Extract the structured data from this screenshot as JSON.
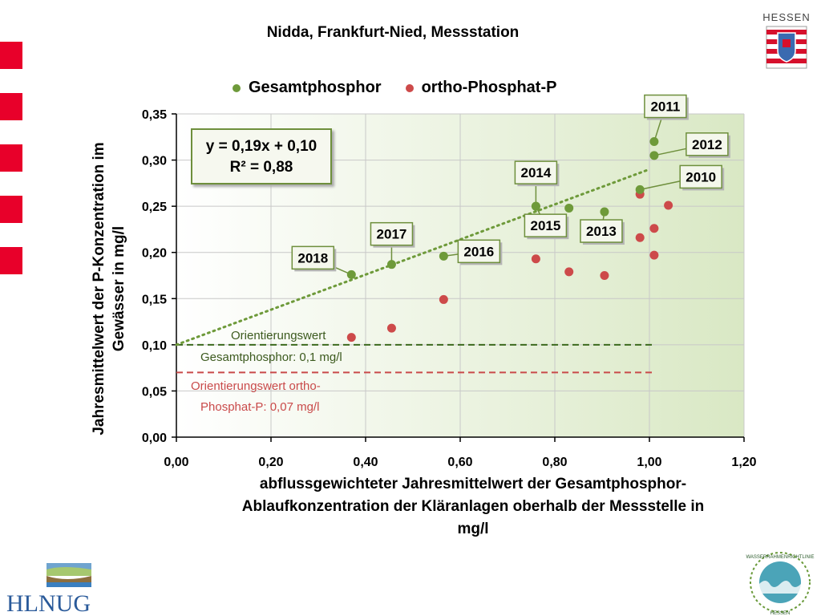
{
  "title": "Nidda, Frankfurt-Nied, Messstation",
  "header_logo": {
    "text": "HESSEN"
  },
  "footer_logos": {
    "left_text": "HLNUG",
    "right_text": "WASSERRAHMENRICHTLINIE",
    "right_bottom": "HESSEN"
  },
  "colors": {
    "gesamtphosphor": "#6e9a3a",
    "orthophosphat": "#cd4a4a",
    "side_blocks": "#e8002a",
    "plot_bg": "#dfeccd"
  },
  "equation": {
    "line1": "y = 0,19x + 0,10",
    "line2": "R² = 0,88"
  },
  "reference_lines": {
    "gesamtphosphor": {
      "value": 0.1,
      "label_line1": "Orientierungswert",
      "label_line2": "Gesamtphosphor: 0,1 mg/l"
    },
    "orthophosphat": {
      "value": 0.07,
      "label_line1": "Orientierungswert ortho-",
      "label_line2": "Phosphat-P: 0,07 mg/l"
    }
  },
  "chart_data": {
    "type": "scatter",
    "title": "Nidda, Frankfurt-Nied, Messstation",
    "xlabel_lines": [
      "abflussgewichteter Jahresmittelwert der Gesamtphosphor-",
      "Ablaufkonzentration der Kläranlagen oberhalb der Messstelle  in",
      "mg/l"
    ],
    "ylabel_lines": [
      "Jahresmittelwert der P-Konzentration im",
      "Gewässer in mg/l"
    ],
    "xlim": [
      0,
      1.2
    ],
    "ylim": [
      0,
      0.35
    ],
    "x_ticks": [
      "0,00",
      "0,20",
      "0,40",
      "0,60",
      "0,80",
      "1,00",
      "1,20"
    ],
    "y_ticks": [
      "0,00",
      "0,05",
      "0,10",
      "0,15",
      "0,20",
      "0,25",
      "0,30",
      "0,35"
    ],
    "grid": true,
    "legend_position": "top",
    "series": [
      {
        "name": "Gesamtphosphor",
        "points": [
          {
            "x": 0.37,
            "y": 0.176,
            "label": "2018"
          },
          {
            "x": 0.455,
            "y": 0.187,
            "label": "2017"
          },
          {
            "x": 0.565,
            "y": 0.196,
            "label": "2016"
          },
          {
            "x": 0.76,
            "y": 0.25,
            "label": "2014"
          },
          {
            "x": 0.76,
            "y": 0.25,
            "label": "2015"
          },
          {
            "x": 0.83,
            "y": 0.248,
            "label": ""
          },
          {
            "x": 0.905,
            "y": 0.244,
            "label": "2013"
          },
          {
            "x": 0.98,
            "y": 0.268,
            "label": "2010"
          },
          {
            "x": 1.01,
            "y": 0.32,
            "label": "2011"
          },
          {
            "x": 1.01,
            "y": 0.305,
            "label": "2012"
          }
        ]
      },
      {
        "name": "ortho-Phosphat-P",
        "points": [
          {
            "x": 0.37,
            "y": 0.108
          },
          {
            "x": 0.455,
            "y": 0.118
          },
          {
            "x": 0.565,
            "y": 0.149
          },
          {
            "x": 0.76,
            "y": 0.193
          },
          {
            "x": 0.83,
            "y": 0.179
          },
          {
            "x": 0.905,
            "y": 0.175
          },
          {
            "x": 0.98,
            "y": 0.216
          },
          {
            "x": 0.98,
            "y": 0.263
          },
          {
            "x": 1.01,
            "y": 0.226
          },
          {
            "x": 1.01,
            "y": 0.197
          },
          {
            "x": 1.04,
            "y": 0.251
          }
        ]
      }
    ],
    "trendline": {
      "series": "Gesamtphosphor",
      "slope": 0.19,
      "intercept": 0.1,
      "x_range": [
        0,
        1.0
      ]
    }
  }
}
